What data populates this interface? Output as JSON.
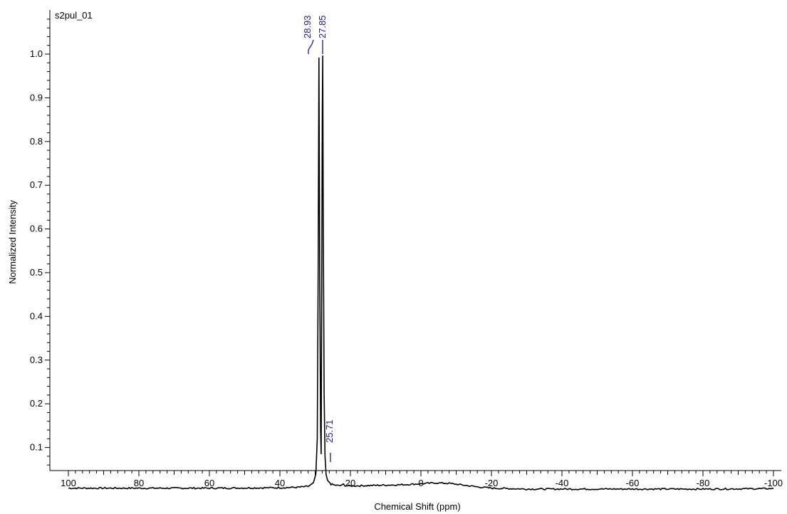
{
  "dataset_label": "s2pul_01",
  "chart_data": {
    "type": "line",
    "xlabel": "Chemical Shift (ppm)",
    "ylabel": "Normalized Intensity",
    "xlim": [
      100,
      -100
    ],
    "ylim": [
      0,
      1.0
    ],
    "x_reversed": true,
    "grid": false,
    "legend": "none",
    "x_ticks": [
      100,
      80,
      60,
      40,
      20,
      0,
      -20,
      -40,
      -60,
      -80,
      -100
    ],
    "x_tick_labels": [
      "100",
      "80",
      "60",
      "40",
      "20",
      "0",
      "-20",
      "-40",
      "-60",
      "-80",
      "-100"
    ],
    "y_ticks": [
      0.1,
      0.2,
      0.3,
      0.4,
      0.5,
      0.6,
      0.7,
      0.8,
      0.9,
      1.0
    ],
    "y_tick_labels": [
      "0.1",
      "0.2",
      "0.3",
      "0.4",
      "0.5",
      "0.6",
      "0.7",
      "0.8",
      "0.9",
      "1.0"
    ],
    "series": [
      {
        "x": [
          100,
          60,
          40,
          35,
          32,
          30.5,
          29.8,
          29.4,
          29.15,
          28.93,
          28.7,
          28.45,
          28.3,
          28.12,
          27.98,
          27.85,
          27.7,
          27.45,
          27.2,
          26.9,
          26.5,
          25.9,
          25.71,
          25.5,
          24.5,
          23.5,
          22.5,
          22.0,
          21.5,
          20,
          15,
          10,
          5,
          0,
          -4,
          -8,
          -12,
          -16,
          -20,
          -25,
          -30,
          -40,
          -60,
          -80,
          -100
        ],
        "y": [
          0.007,
          0.007,
          0.008,
          0.009,
          0.011,
          0.018,
          0.04,
          0.12,
          0.5,
          0.992,
          0.5,
          0.14,
          0.085,
          0.5,
          0.86,
          0.997,
          0.62,
          0.22,
          0.08,
          0.038,
          0.024,
          0.019,
          0.018,
          0.016,
          0.014,
          0.013,
          0.013,
          0.016,
          0.013,
          0.012,
          0.013,
          0.014,
          0.015,
          0.017,
          0.019,
          0.018,
          0.014,
          0.01,
          0.007,
          0.006,
          0.005,
          0.005,
          0.005,
          0.005,
          0.006
        ]
      }
    ],
    "peak_labels": [
      {
        "x": 28.93,
        "label": "28.93"
      },
      {
        "x": 27.85,
        "label": "27.85"
      },
      {
        "x": 25.71,
        "label": "25.71"
      }
    ],
    "colors": {
      "trace": "#000000",
      "peak_label": "#1a1a8c",
      "axis": "#000000"
    }
  }
}
